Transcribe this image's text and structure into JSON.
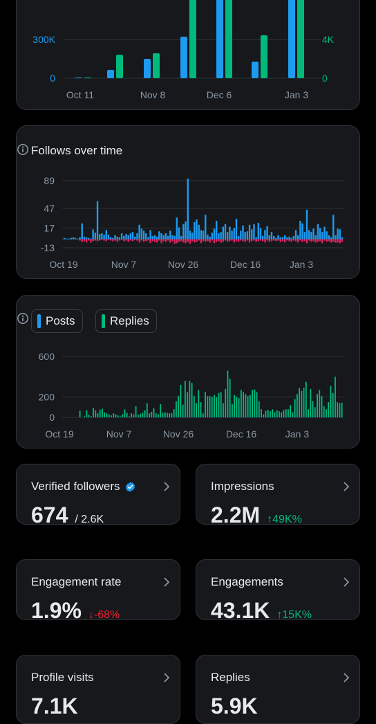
{
  "top_chart": {
    "x_ticks": [
      "Oct 11",
      "Nov 8",
      "Dec 6",
      "Jan 3"
    ],
    "left_ticks": [
      "300K",
      "0"
    ],
    "right_ticks": [
      "4K",
      "0"
    ],
    "colors": {
      "blue": "#1d9bf0",
      "green": "#00ba7c"
    }
  },
  "follows_card": {
    "title": "Follows over time",
    "info_icon": "info-circle-icon",
    "chart_data": {
      "type": "bar",
      "y_ticks": [
        "89",
        "47",
        "17",
        "-13"
      ],
      "ylim": [
        -13,
        89
      ],
      "x_ticks": [
        "Oct 19",
        "Nov 7",
        "Nov 26",
        "Dec 16",
        "Jan 3"
      ],
      "series": [
        {
          "color": "#1d9bf0",
          "values": [
            2,
            1,
            1,
            2,
            3,
            2,
            1,
            3,
            24,
            4,
            3,
            2,
            1,
            15,
            10,
            58,
            8,
            9,
            7,
            14,
            7,
            3,
            2,
            6,
            4,
            3,
            9,
            5,
            8,
            6,
            9,
            11,
            4,
            9,
            22,
            16,
            13,
            9,
            3,
            14,
            5,
            6,
            4,
            12,
            9,
            6,
            9,
            5,
            13,
            6,
            5,
            33,
            18,
            5,
            23,
            27,
            92,
            13,
            10,
            26,
            30,
            22,
            14,
            13,
            37,
            7,
            4,
            10,
            16,
            28,
            9,
            11,
            19,
            23,
            11,
            19,
            13,
            17,
            31,
            5,
            13,
            21,
            11,
            12,
            22,
            15,
            23,
            3,
            25,
            17,
            5,
            14,
            20,
            6,
            11,
            5,
            2,
            6,
            3,
            3,
            6,
            3,
            4,
            2,
            5,
            14,
            6,
            28,
            24,
            11,
            45,
            14,
            11,
            16,
            6,
            23,
            17,
            11,
            19,
            12,
            6,
            3,
            37,
            6,
            16,
            15,
            3
          ]
        },
        {
          "color": "#e0245e",
          "values": [
            0,
            0,
            0,
            0,
            0,
            0,
            0,
            -2,
            -4,
            -3,
            -5,
            -2,
            -5,
            -3,
            -2,
            -3,
            -2,
            -1,
            -2,
            -3,
            -1,
            -2,
            -3,
            -2,
            -4,
            -2,
            -1,
            -3,
            -2,
            -4,
            -2,
            -3,
            -1,
            -2,
            -5,
            -2,
            -4,
            -3,
            -2,
            -6,
            -3,
            -4,
            -5,
            -2,
            -6,
            -3,
            -4,
            -2,
            -5,
            -3,
            -7,
            -6,
            -4,
            -3,
            -5,
            -6,
            -4,
            -7,
            -3,
            -5,
            -4,
            -2,
            -6,
            -3,
            -4,
            -3,
            -5,
            -2,
            -6,
            -4,
            -3,
            -5,
            -4,
            -2,
            -4,
            -3,
            -2,
            -5,
            -3,
            -4,
            -2,
            -3,
            -4,
            -2,
            -5,
            -3,
            -2,
            -4,
            -3,
            -2,
            -3,
            -5,
            -2,
            -4,
            -3,
            -2,
            -3,
            -2,
            -4,
            -3,
            -5,
            -2,
            -3,
            -4,
            -2,
            -3,
            -5,
            -2,
            -4,
            -3,
            -6,
            -2,
            -4,
            -3,
            -5,
            -4,
            -3,
            -6,
            -2,
            -4,
            -3,
            -5,
            -4,
            -5,
            -5,
            -6,
            -4
          ]
        }
      ]
    }
  },
  "posts_card": {
    "legend": [
      {
        "label": "Posts",
        "color": "#1d9bf0"
      },
      {
        "label": "Replies",
        "color": "#00ba7c"
      }
    ],
    "info_icon": "info-circle-icon",
    "chart_data": {
      "type": "bar",
      "y_ticks": [
        "600",
        "200",
        "0"
      ],
      "ylim": [
        0,
        600
      ],
      "x_ticks": [
        "Oct 19",
        "Nov 7",
        "Nov 26",
        "Dec 16",
        "Jan 3"
      ],
      "series": [
        {
          "name": "Posts",
          "color": "#1d9bf0",
          "values": [
            0,
            0,
            0,
            0,
            0,
            0,
            0,
            2,
            1,
            3,
            0,
            2,
            4,
            1,
            0,
            2,
            3,
            1,
            0,
            2,
            4,
            1,
            2,
            0,
            3,
            1,
            2,
            5,
            1,
            3,
            0,
            2,
            4,
            1,
            3,
            2,
            4,
            1,
            5,
            3,
            2,
            4,
            6,
            3,
            2,
            5,
            4,
            3,
            6,
            2,
            4,
            3,
            5,
            2,
            4,
            6,
            3,
            2,
            4,
            5,
            3,
            2,
            4,
            3,
            5,
            2,
            3,
            4,
            2,
            3,
            5,
            4,
            2,
            3,
            4,
            2,
            5,
            3,
            2,
            4,
            3,
            2,
            4,
            3,
            5,
            2,
            3,
            4,
            2,
            3,
            2,
            4,
            3,
            2,
            3,
            2,
            4,
            3,
            5,
            2,
            3,
            4,
            2,
            3,
            5,
            2,
            4,
            3,
            2,
            3,
            4,
            2,
            3,
            5,
            2,
            4,
            3,
            2,
            3,
            4,
            2,
            3,
            2,
            4,
            3
          ]
        },
        {
          "name": "Replies",
          "color": "#00ba7c",
          "values": [
            0,
            0,
            0,
            0,
            0,
            0,
            0,
            65,
            0,
            10,
            70,
            25,
            10,
            95,
            70,
            40,
            75,
            85,
            50,
            40,
            30,
            20,
            40,
            30,
            20,
            10,
            30,
            80,
            45,
            10,
            40,
            30,
            110,
            25,
            35,
            45,
            70,
            140,
            40,
            55,
            90,
            40,
            30,
            130,
            45,
            50,
            45,
            40,
            40,
            80,
            160,
            210,
            320,
            125,
            360,
            250,
            360,
            340,
            210,
            140,
            270,
            150,
            40,
            250,
            210,
            210,
            200,
            220,
            200,
            240,
            250,
            140,
            280,
            460,
            380,
            130,
            220,
            205,
            190,
            270,
            250,
            230,
            210,
            220,
            270,
            275,
            250,
            160,
            80,
            30,
            65,
            75,
            60,
            80,
            50,
            70,
            60,
            50,
            70,
            80,
            80,
            120,
            50,
            180,
            230,
            290,
            260,
            290,
            350,
            80,
            280,
            160,
            100,
            230,
            270,
            210,
            110,
            80,
            150,
            310,
            240,
            400,
            150,
            140,
            145
          ]
        }
      ]
    }
  },
  "stats": {
    "verified": {
      "label": "Verified followers",
      "value": "674",
      "sub": "/ 2.6K"
    },
    "impressions": {
      "label": "Impressions",
      "value": "2.2M",
      "delta": "↑49K%",
      "delta_color": "#00ba7c"
    },
    "engagement_rate": {
      "label": "Engagement rate",
      "value": "1.9%",
      "delta": "↓-68%",
      "delta_color": "#f4212e"
    },
    "engagements": {
      "label": "Engagements",
      "value": "43.1K",
      "delta": "↑15K%",
      "delta_color": "#00ba7c"
    },
    "profile_visits": {
      "label": "Profile visits",
      "value": "7.1K"
    },
    "replies": {
      "label": "Replies",
      "value": "5.9K"
    }
  }
}
